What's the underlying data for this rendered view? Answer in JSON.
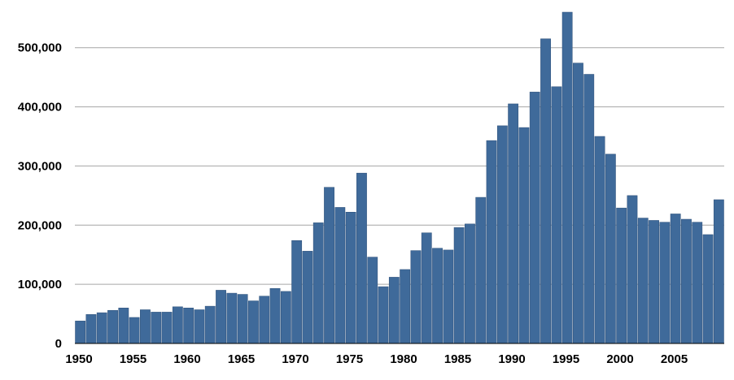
{
  "chart_data": {
    "type": "bar",
    "title": "",
    "xlabel": "",
    "ylabel": "",
    "bar_color": "#3f6a9a",
    "grid": true,
    "ylim": [
      0,
      560000
    ],
    "y_ticks": [
      0,
      100000,
      200000,
      300000,
      400000,
      500000
    ],
    "y_tick_labels": [
      "0",
      "100,000",
      "200,000",
      "300,000",
      "400,000",
      "500,000"
    ],
    "x_tick_labels": [
      "1950",
      "1955",
      "1960",
      "1965",
      "1970",
      "1975",
      "1980",
      "1985",
      "1990",
      "1995",
      "2000",
      "2005"
    ],
    "categories": [
      1950,
      1951,
      1952,
      1953,
      1954,
      1955,
      1956,
      1957,
      1958,
      1959,
      1960,
      1961,
      1962,
      1963,
      1964,
      1965,
      1966,
      1967,
      1968,
      1969,
      1970,
      1971,
      1972,
      1973,
      1974,
      1975,
      1976,
      1977,
      1978,
      1979,
      1980,
      1981,
      1982,
      1983,
      1984,
      1985,
      1986,
      1987,
      1988,
      1989,
      1990,
      1991,
      1992,
      1993,
      1994,
      1995,
      1996,
      1997,
      1998,
      1999,
      2000,
      2001,
      2002,
      2003,
      2004,
      2005,
      2006,
      2007,
      2008,
      2009
    ],
    "values": [
      38000,
      49000,
      52000,
      56000,
      60000,
      44000,
      57000,
      53000,
      53000,
      62000,
      60000,
      57000,
      63000,
      90000,
      85000,
      83000,
      72000,
      80000,
      93000,
      88000,
      174000,
      156000,
      204000,
      264000,
      230000,
      222000,
      288000,
      146000,
      96000,
      112000,
      125000,
      157000,
      187000,
      161000,
      158000,
      196000,
      202000,
      247000,
      343000,
      368000,
      405000,
      365000,
      425000,
      515000,
      434000,
      560000,
      474000,
      455000,
      350000,
      320000,
      229000,
      250000,
      212000,
      208000,
      205000,
      219000,
      210000,
      205000,
      184000,
      243000
    ]
  }
}
